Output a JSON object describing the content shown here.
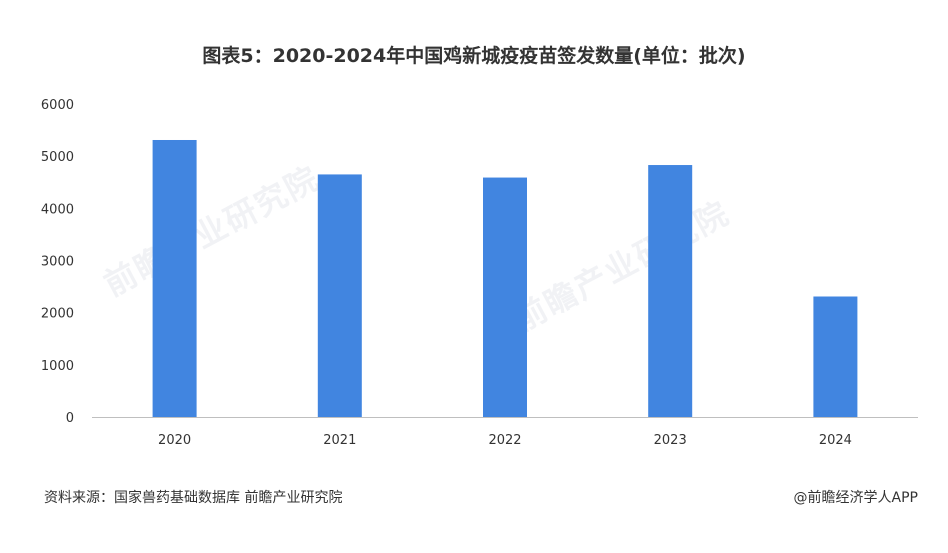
{
  "title": "图表5：2020-2024年中国鸡新城疫疫苗签发数量(单位：批次)",
  "source": "资料来源：国家兽药基础数据库 前瞻产业研究院",
  "credit": "@前瞻经济学人APP",
  "watermark_text": "前瞻产业研究院",
  "colors": {
    "bar": "#4185E0",
    "axis": "#BFBFBF",
    "text": "#333333"
  },
  "chart_data": {
    "type": "bar",
    "title": "图表5：2020-2024年中国鸡新城疫疫苗签发数量(单位：批次)",
    "xlabel": "",
    "ylabel": "",
    "categories": [
      "2020",
      "2021",
      "2022",
      "2023",
      "2024"
    ],
    "values": [
      5310,
      4650,
      4590,
      4830,
      2310
    ],
    "ylim": [
      0,
      6000
    ],
    "yticks": [
      "0",
      "1000",
      "2000",
      "3000",
      "4000",
      "5000",
      "6000"
    ],
    "grid": false,
    "legend": "none"
  }
}
